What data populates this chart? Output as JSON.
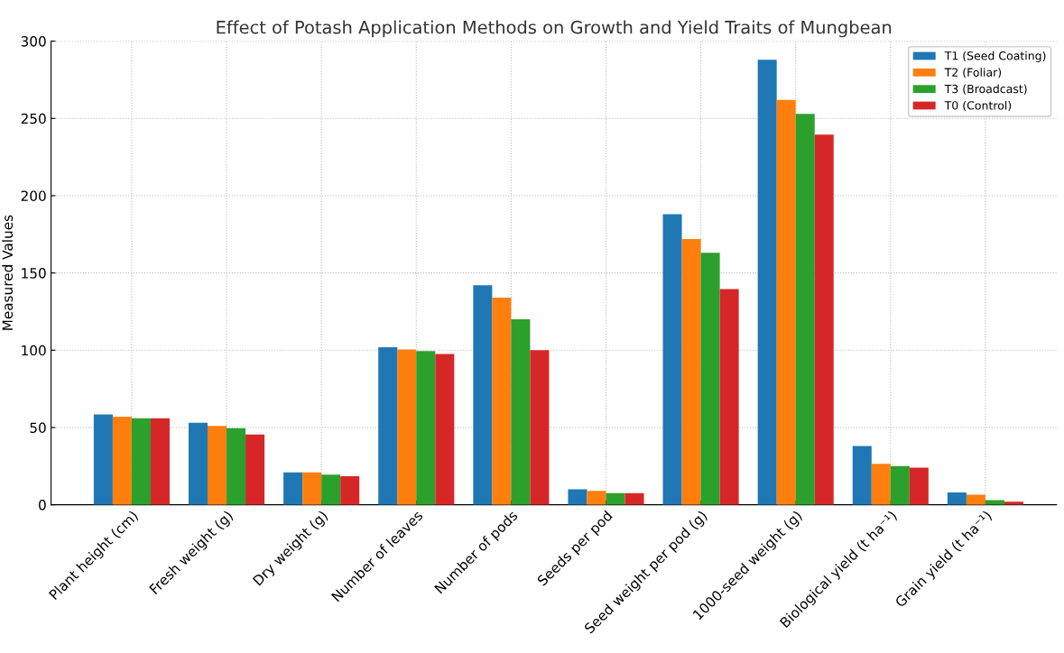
{
  "chart_data": {
    "type": "bar",
    "title": "Effect of Potash Application Methods on Growth and Yield Traits of Mungbean",
    "ylabel": "Measured Values",
    "categories": [
      "Plant height (cm)",
      "Fresh weight (g)",
      "Dry weight (g)",
      "Number of leaves",
      "Number of pods",
      "Seeds per pod",
      "Seed weight per pod (g)",
      "1000-seed weight (g)",
      "Biological yield (t ha⁻¹)",
      "Grain yield (t ha⁻¹)"
    ],
    "series": [
      {
        "name": "T1 (Seed Coating)",
        "color": "#1f77b4",
        "values": [
          58.5,
          53,
          21,
          102,
          142,
          10,
          188,
          288,
          38,
          8
        ]
      },
      {
        "name": "T2 (Foliar)",
        "color": "#ff7f0e",
        "values": [
          57,
          51,
          21,
          100.5,
          134,
          9,
          172,
          262,
          26.5,
          6.5
        ]
      },
      {
        "name": "T3 (Broadcast)",
        "color": "#2ca02c",
        "values": [
          56,
          49.5,
          19.5,
          99.5,
          120,
          7.5,
          163,
          253,
          25,
          3
        ]
      },
      {
        "name": "T0 (Control)",
        "color": "#d62728",
        "values": [
          56,
          45.5,
          18.5,
          97.5,
          100,
          7.5,
          139.5,
          239.5,
          24,
          2
        ]
      }
    ],
    "ylim": [
      0,
      300
    ],
    "yticks": [
      0,
      50,
      100,
      150,
      200,
      250,
      300
    ],
    "grid": true,
    "legend": "top right"
  }
}
